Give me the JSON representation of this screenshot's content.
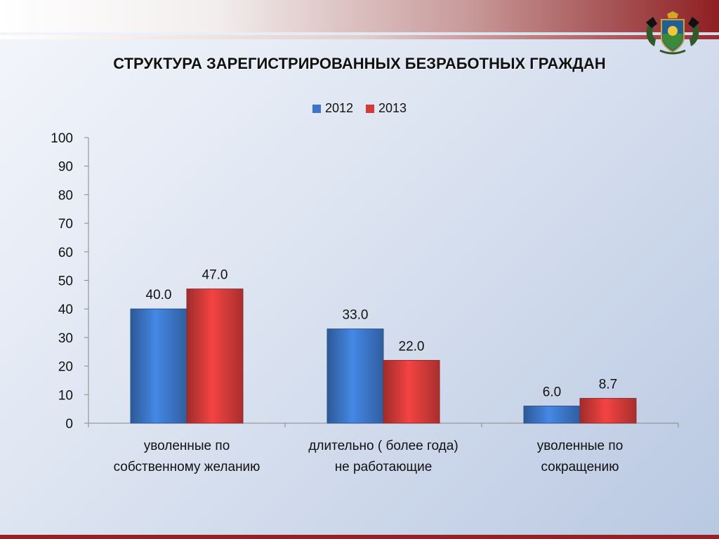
{
  "title": "СТРУКТУРА ЗАРЕГИСТРИРОВАННЫХ БЕЗРАБОТНЫХ ГРАЖДАН",
  "chart_data": {
    "type": "bar",
    "title": "",
    "xlabel": "",
    "ylabel": "",
    "ylim": [
      0,
      100
    ],
    "yticks": [
      0,
      10,
      20,
      30,
      40,
      50,
      60,
      70,
      80,
      90,
      100
    ],
    "grid": false,
    "legend_position": "top",
    "categories": [
      "уволенные по собственному желанию",
      "длительно ( более года) не работающие",
      "уволенные по сокращению"
    ],
    "category_lines": [
      [
        "уволенные по",
        "собственному желанию"
      ],
      [
        "длительно ( более года)",
        "не работающие"
      ],
      [
        "уволенные по",
        "сокращению"
      ]
    ],
    "series": [
      {
        "name": "2012",
        "values": [
          40.0,
          33.0,
          6.0
        ],
        "labels": [
          "40.0",
          "33.0",
          "6.0"
        ],
        "color": "#3c76c8"
      },
      {
        "name": "2013",
        "values": [
          47.0,
          22.0,
          8.7
        ],
        "labels": [
          "47.0",
          "22.0",
          "8.7"
        ],
        "color": "#d33b39"
      }
    ]
  }
}
